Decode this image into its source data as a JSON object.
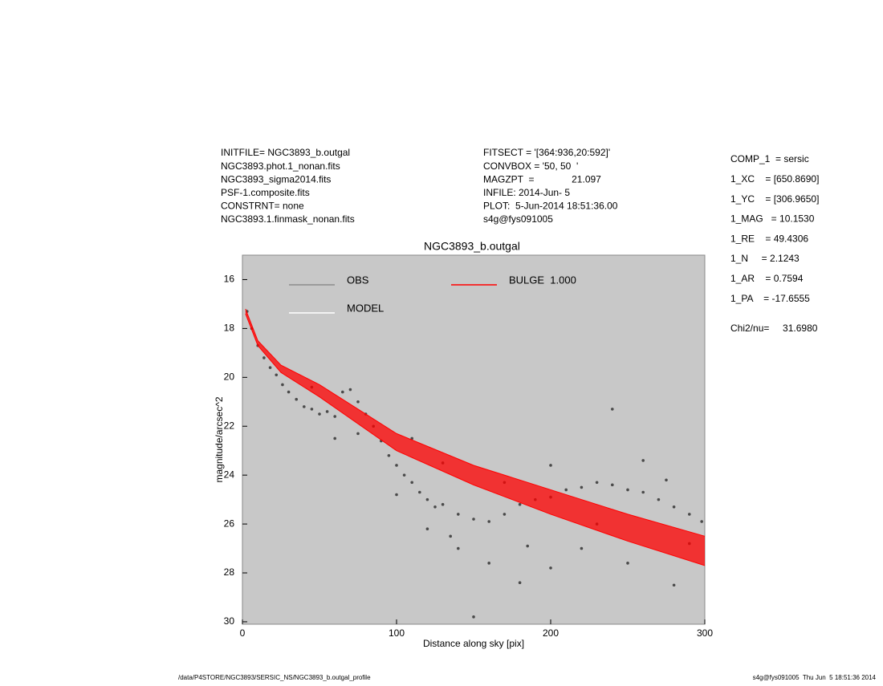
{
  "header": {
    "left": [
      "INITFILE= NGC3893_b.outgal",
      "NGC3893.phot.1_nonan.fits",
      "NGC3893_sigma2014.fits",
      "PSF-1.composite.fits",
      "CONSTRNT= none",
      "NGC3893.1.finmask_nonan.fits"
    ],
    "middle": [
      "FITSECT = '[364:936,20:592]'",
      "CONVBOX = '50, 50  '",
      "MAGZPT  =              21.097",
      "INFILE: 2014-Jun- 5",
      "PLOT:  5-Jun-2014 18:51:36.00",
      "s4g@fys091005"
    ],
    "params": [
      "COMP_1  = sersic",
      "1_XC    = [650.8690]",
      "1_YC    = [306.9650]",
      "1_MAG   = 10.1530",
      "1_RE    = 49.4306",
      "1_N     = 2.1243",
      "1_AR    = 0.7594",
      "1_PA    = -17.6555"
    ],
    "chi2": "Chi2/nu=     31.6980"
  },
  "footer": {
    "left": "/data/P4STORE/NGC3893/SERSIC_NS/NGC3893_b.outgal_profile",
    "right": "s4g@fys091005  Thu Jun  5 18:51:36 2014"
  },
  "chart_data": {
    "type": "scatter",
    "title": "NGC3893_b.outgal",
    "x_label": "Distance along sky [pix]",
    "y_label": "magnitude/arcsec^2",
    "xlim": [
      0,
      300
    ],
    "xticks": [
      0,
      100,
      200,
      300
    ],
    "ylim": [
      30.1,
      15
    ],
    "yticks": [
      16,
      18,
      20,
      22,
      24,
      26,
      28,
      30
    ],
    "background": "#c8c8c8",
    "series": [
      {
        "name": "OBS",
        "color": "#4a4a4a",
        "legend_color": "#8c8c8c",
        "x": [
          3,
          6,
          10,
          14,
          18,
          22,
          26,
          30,
          35,
          40,
          45,
          50,
          55,
          60,
          65,
          70,
          75,
          80,
          85,
          90,
          95,
          100,
          105,
          110,
          115,
          120,
          125,
          130,
          140,
          150,
          160,
          170,
          180,
          190,
          200,
          210,
          220,
          230,
          240,
          250,
          260,
          270,
          280,
          290,
          298,
          60,
          100,
          120,
          140,
          160,
          180,
          200,
          220,
          250,
          280,
          150,
          240,
          110,
          130,
          170,
          200,
          260,
          290,
          45,
          75,
          135,
          185,
          230,
          275
        ],
        "values": [
          17.3,
          18.0,
          18.7,
          19.2,
          19.6,
          19.9,
          20.3,
          20.6,
          20.9,
          21.2,
          21.3,
          21.5,
          21.4,
          21.6,
          20.6,
          20.5,
          21.0,
          21.5,
          22.0,
          22.6,
          23.2,
          23.6,
          24.0,
          24.3,
          24.7,
          25.0,
          25.3,
          25.2,
          25.6,
          25.8,
          25.9,
          25.6,
          25.2,
          25.0,
          24.9,
          24.6,
          24.5,
          24.3,
          24.4,
          24.6,
          24.7,
          25.0,
          25.3,
          25.6,
          25.9,
          22.5,
          24.8,
          26.2,
          27.0,
          27.6,
          28.4,
          27.8,
          27.0,
          27.6,
          28.5,
          29.8,
          21.3,
          22.5,
          23.5,
          24.3,
          23.6,
          23.4,
          26.8,
          20.4,
          22.3,
          26.5,
          26.9,
          26.0,
          24.2
        ]
      },
      {
        "name": "MODEL",
        "color": "#ffffff"
      },
      {
        "name": "BULGE  1.000",
        "color": "#ff0000",
        "x": [
          2,
          10,
          25,
          50,
          100,
          150,
          200,
          250,
          300
        ],
        "values": [
          17.2,
          18.5,
          19.5,
          20.3,
          22.3,
          23.6,
          24.6,
          25.6,
          26.5
        ],
        "values_low": [
          17.4,
          18.7,
          19.8,
          20.8,
          23.0,
          24.4,
          25.6,
          26.7,
          27.7
        ]
      }
    ]
  }
}
